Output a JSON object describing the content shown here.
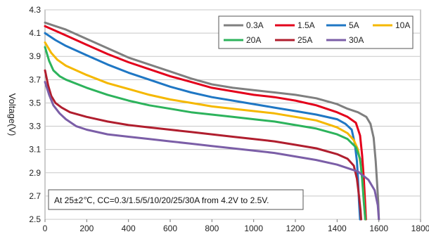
{
  "chart_data": {
    "type": "line",
    "title": "",
    "xlabel": "",
    "ylabel": "Voltage(V)",
    "xlim": [
      0,
      1800
    ],
    "ylim": [
      2.5,
      4.3
    ],
    "x_ticks": [
      "0",
      "200",
      "400",
      "600",
      "800",
      "1000",
      "1200",
      "1400",
      "1600",
      "1800"
    ],
    "y_ticks": [
      "2.5",
      "2.7",
      "2.9",
      "3.1",
      "3.3",
      "3.5",
      "3.7",
      "3.9",
      "4.1",
      "4.3"
    ],
    "grid": true,
    "legend_position": "top-right",
    "annotation": "At 25±2℃, CC=0.3/1.5/5/10/20/25/30A from 4.2V to 2.5V.",
    "series": [
      {
        "name": "0.3A",
        "color": "#7f7f7f",
        "x": [
          0,
          50,
          100,
          200,
          300,
          400,
          500,
          600,
          700,
          800,
          900,
          1000,
          1100,
          1200,
          1300,
          1400,
          1450,
          1500,
          1540,
          1560,
          1575,
          1585,
          1592,
          1597,
          1600
        ],
        "y": [
          4.19,
          4.16,
          4.13,
          4.05,
          3.97,
          3.89,
          3.83,
          3.77,
          3.71,
          3.66,
          3.63,
          3.61,
          3.59,
          3.57,
          3.54,
          3.49,
          3.45,
          3.42,
          3.38,
          3.32,
          3.2,
          3.0,
          2.8,
          2.65,
          2.5
        ]
      },
      {
        "name": "1.5A",
        "color": "#e3001b",
        "x": [
          0,
          50,
          100,
          200,
          300,
          400,
          500,
          600,
          700,
          800,
          900,
          1000,
          1100,
          1200,
          1300,
          1400,
          1450,
          1490,
          1510,
          1520,
          1528,
          1534,
          1538
        ],
        "y": [
          4.16,
          4.12,
          4.08,
          4.0,
          3.92,
          3.85,
          3.79,
          3.73,
          3.68,
          3.63,
          3.6,
          3.57,
          3.55,
          3.52,
          3.48,
          3.42,
          3.38,
          3.33,
          3.22,
          3.05,
          2.85,
          2.65,
          2.5
        ]
      },
      {
        "name": "5A",
        "color": "#1f77c4",
        "x": [
          0,
          50,
          100,
          200,
          300,
          400,
          500,
          600,
          700,
          800,
          900,
          1000,
          1100,
          1200,
          1300,
          1400,
          1440,
          1470,
          1485,
          1495,
          1500,
          1505,
          1510
        ],
        "y": [
          4.1,
          4.04,
          3.99,
          3.91,
          3.83,
          3.76,
          3.7,
          3.64,
          3.59,
          3.55,
          3.52,
          3.49,
          3.46,
          3.43,
          3.4,
          3.36,
          3.32,
          3.27,
          3.15,
          3.0,
          2.85,
          2.65,
          2.5
        ]
      },
      {
        "name": "10A",
        "color": "#f5b800",
        "x": [
          0,
          30,
          60,
          100,
          200,
          300,
          400,
          500,
          600,
          700,
          800,
          900,
          1000,
          1100,
          1200,
          1300,
          1400,
          1450,
          1480,
          1500,
          1515,
          1525,
          1530,
          1535
        ],
        "y": [
          4.02,
          3.93,
          3.87,
          3.82,
          3.74,
          3.67,
          3.62,
          3.57,
          3.53,
          3.5,
          3.47,
          3.45,
          3.43,
          3.41,
          3.38,
          3.35,
          3.29,
          3.24,
          3.18,
          3.1,
          2.95,
          2.75,
          2.62,
          2.5
        ]
      },
      {
        "name": "20A",
        "color": "#2db35c",
        "x": [
          0,
          20,
          40,
          70,
          100,
          200,
          300,
          400,
          500,
          600,
          700,
          800,
          900,
          1000,
          1100,
          1200,
          1300,
          1400,
          1450,
          1490,
          1510,
          1520,
          1528,
          1535
        ],
        "y": [
          3.98,
          3.86,
          3.78,
          3.73,
          3.7,
          3.63,
          3.57,
          3.52,
          3.48,
          3.45,
          3.42,
          3.4,
          3.38,
          3.36,
          3.34,
          3.31,
          3.28,
          3.23,
          3.19,
          3.12,
          3.02,
          2.85,
          2.65,
          2.5
        ]
      },
      {
        "name": "25A",
        "color": "#b01e2e",
        "x": [
          0,
          15,
          30,
          50,
          80,
          120,
          200,
          300,
          400,
          500,
          600,
          700,
          800,
          900,
          1000,
          1100,
          1200,
          1300,
          1400,
          1450,
          1480,
          1495,
          1505,
          1512,
          1515
        ],
        "y": [
          3.78,
          3.65,
          3.56,
          3.5,
          3.46,
          3.42,
          3.38,
          3.34,
          3.31,
          3.29,
          3.27,
          3.25,
          3.23,
          3.21,
          3.19,
          3.17,
          3.14,
          3.11,
          3.06,
          3.02,
          2.96,
          2.85,
          2.7,
          2.58,
          2.5
        ]
      },
      {
        "name": "30A",
        "color": "#7b5ea7",
        "x": [
          0,
          20,
          40,
          70,
          100,
          150,
          200,
          300,
          400,
          500,
          600,
          700,
          800,
          900,
          1000,
          1100,
          1200,
          1300,
          1400,
          1500,
          1550,
          1580,
          1595,
          1600
        ],
        "y": [
          3.68,
          3.57,
          3.48,
          3.41,
          3.36,
          3.3,
          3.27,
          3.23,
          3.21,
          3.19,
          3.17,
          3.15,
          3.13,
          3.11,
          3.09,
          3.07,
          3.04,
          3.01,
          2.97,
          2.91,
          2.84,
          2.75,
          2.62,
          2.5
        ]
      }
    ]
  }
}
